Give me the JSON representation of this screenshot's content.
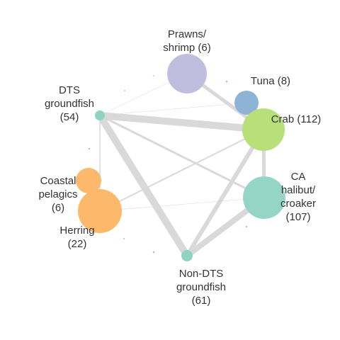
{
  "nodes": [
    {
      "id": "prawns",
      "label_lines": [
        "Prawns/",
        "shrimp (6)"
      ],
      "color": "#c0bedf"
    },
    {
      "id": "tuna",
      "label_lines": [
        "Tuna (8)"
      ],
      "color": "#8db3d6"
    },
    {
      "id": "crab",
      "label_lines": [
        "Crab (112)"
      ],
      "color": "#b8e07a"
    },
    {
      "id": "ca_halibut",
      "label_lines": [
        "CA",
        "halibut/",
        "croaker",
        "(107)"
      ],
      "color": "#95d5c8"
    },
    {
      "id": "non_dts",
      "label_lines": [
        "Non-DTS",
        "groundfish",
        "(61)"
      ],
      "color": "#8fd2c2"
    },
    {
      "id": "herring",
      "label_lines": [
        "Herring",
        "(22)"
      ],
      "color": "#fdb96b"
    },
    {
      "id": "coastal",
      "label_lines": [
        "Coastal",
        "pelagics",
        "(6)"
      ],
      "color": "#fdb96b"
    },
    {
      "id": "dts",
      "label_lines": [
        "DTS",
        "groundfish",
        "(54)"
      ],
      "color": "#8fd2c2"
    }
  ],
  "edges": [
    {
      "from": "dts",
      "to": "crab",
      "weight": 10
    },
    {
      "from": "dts",
      "to": "non_dts",
      "weight": 10
    },
    {
      "from": "non_dts",
      "to": "crab",
      "weight": 6
    },
    {
      "from": "non_dts",
      "to": "ca_halibut",
      "weight": 8
    },
    {
      "from": "dts",
      "to": "ca_halibut",
      "weight": 3
    },
    {
      "from": "prawns",
      "to": "crab",
      "weight": 5
    },
    {
      "from": "crab",
      "to": "ca_halibut",
      "weight": 5
    },
    {
      "from": "herring",
      "to": "crab",
      "weight": 2
    },
    {
      "from": "herring",
      "to": "ca_halibut",
      "weight": 0.6
    },
    {
      "from": "dts",
      "to": "prawns",
      "weight": 0.5
    },
    {
      "from": "dts",
      "to": "tuna",
      "weight": 0.5
    },
    {
      "from": "herring",
      "to": "dts",
      "weight": 1.5
    }
  ],
  "edge_color": "#d9d9d9"
}
